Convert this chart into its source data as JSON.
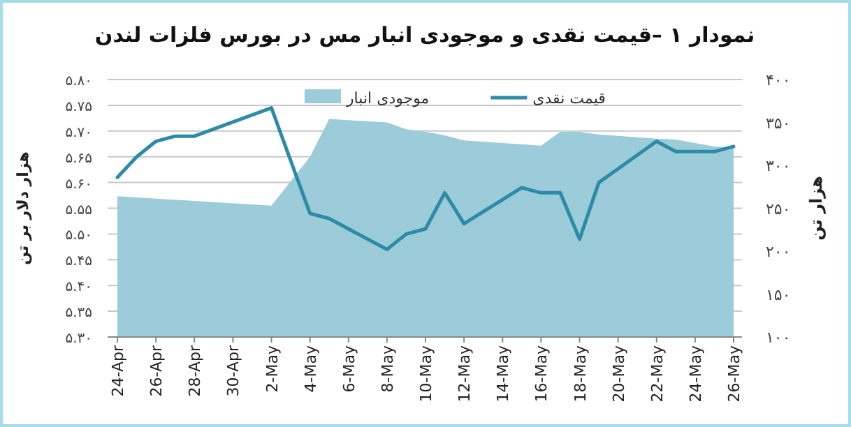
{
  "chart_data": {
    "type": "line",
    "title": "نمودار ۱ –قیمت نقدی و موجودی انبار مس در بورس فلزات لندن",
    "ylabel": "هزار دلار بر تن",
    "y2label": "هزار تن",
    "xlim": [
      "--04-24",
      "--05-26"
    ],
    "xticks": [
      {
        "value": "--04-24",
        "label": "24-Apr"
      },
      {
        "value": "--04-26",
        "label": "26-Apr"
      },
      {
        "value": "--04-28",
        "label": "28-Apr"
      },
      {
        "value": "--04-30",
        "label": "30-Apr"
      },
      {
        "value": "--05-02",
        "label": "2-May"
      },
      {
        "value": "--05-04",
        "label": "4-May"
      },
      {
        "value": "--05-06",
        "label": "6-May"
      },
      {
        "value": "--05-08",
        "label": "8-May"
      },
      {
        "value": "--05-10",
        "label": "10-May"
      },
      {
        "value": "--05-12",
        "label": "12-May"
      },
      {
        "value": "--05-14",
        "label": "14-May"
      },
      {
        "value": "--05-16",
        "label": "16-May"
      },
      {
        "value": "--05-18",
        "label": "18-May"
      },
      {
        "value": "--05-20",
        "label": "20-May"
      },
      {
        "value": "--05-22",
        "label": "22-May"
      },
      {
        "value": "--05-24",
        "label": "24-May"
      },
      {
        "value": "--05-26",
        "label": "26-May"
      }
    ],
    "ylim": [
      5.3,
      5.8
    ],
    "yticks": [
      {
        "value": 5.3,
        "label": "۵.۳۰"
      },
      {
        "value": 5.35,
        "label": "۵.۳۵"
      },
      {
        "value": 5.4,
        "label": "۵.۴۰"
      },
      {
        "value": 5.45,
        "label": "۵.۴۵"
      },
      {
        "value": 5.5,
        "label": "۵.۵۰"
      },
      {
        "value": 5.55,
        "label": "۵.۵۵"
      },
      {
        "value": 5.6,
        "label": "۵.۶۰"
      },
      {
        "value": 5.65,
        "label": "۵.۶۵"
      },
      {
        "value": 5.7,
        "label": "۵.۷۰"
      },
      {
        "value": 5.75,
        "label": "۵.۷۵"
      },
      {
        "value": 5.8,
        "label": "۵.۸۰"
      }
    ],
    "y2lim": [
      100,
      400
    ],
    "y2ticks": [
      {
        "value": 100,
        "label": "۱۰۰"
      },
      {
        "value": 150,
        "label": "۱۵۰"
      },
      {
        "value": 200,
        "label": "۲۰۰"
      },
      {
        "value": 250,
        "label": "۲۵۰"
      },
      {
        "value": 300,
        "label": "۳۰۰"
      },
      {
        "value": 350,
        "label": "۳۵۰"
      },
      {
        "value": 400,
        "label": "۴۰۰"
      }
    ],
    "grid": "y",
    "legend": "top",
    "series": [
      {
        "name": "موجودی انبار",
        "type": "area",
        "axis": "y2",
        "color": "#9ccbd9",
        "x": [
          "--04-24",
          "--05-02",
          "--05-04",
          "--05-05",
          "--05-08",
          "--05-09",
          "--05-10",
          "--05-11",
          "--05-12",
          "--05-16",
          "--05-17",
          "--05-18",
          "--05-19",
          "--05-22",
          "--05-23",
          "--05-25",
          "--05-26"
        ],
        "values": [
          264,
          253,
          310,
          354,
          350,
          342,
          339,
          335,
          329,
          323,
          339,
          339,
          336,
          331,
          330,
          322,
          321
        ]
      },
      {
        "name": "قیمت نقدی",
        "color": "#2e8ba6",
        "x": [
          "--04-24",
          "--04-25",
          "--04-26",
          "--04-27",
          "--04-28",
          "--05-02",
          "--05-04",
          "--05-05",
          "--05-08",
          "--05-09",
          "--05-10",
          "--05-11",
          "--05-12",
          "--05-15",
          "--05-16",
          "--05-17",
          "--05-18",
          "--05-19",
          "--05-22",
          "--05-23",
          "--05-24",
          "--05-25",
          "--05-26"
        ],
        "values": [
          5.61,
          5.65,
          5.68,
          5.69,
          5.69,
          5.745,
          5.54,
          5.53,
          5.47,
          5.5,
          5.51,
          5.58,
          5.52,
          5.59,
          5.58,
          5.58,
          5.49,
          5.6,
          5.68,
          5.66,
          5.66,
          5.66,
          5.67
        ]
      }
    ]
  }
}
